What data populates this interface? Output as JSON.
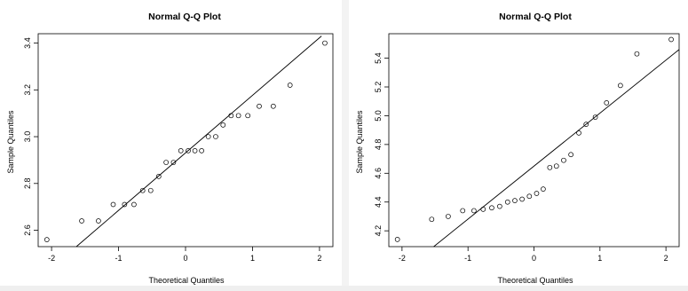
{
  "chart_data": [
    {
      "type": "scatter",
      "title": "Normal Q-Q Plot",
      "xlabel": "Theoretical Quantiles",
      "ylabel": "Sample Quantiles",
      "xlim": [
        -2.2,
        2.2
      ],
      "ylim": [
        2.53,
        3.44
      ],
      "x_ticks": [
        -2,
        -1,
        0,
        1,
        2
      ],
      "x_tick_labels": [
        "-2",
        "-1",
        "0",
        "1",
        "2"
      ],
      "y_ticks": [
        2.6,
        2.8,
        3.0,
        3.2,
        3.4
      ],
      "y_tick_labels": [
        "2.6",
        "2.8",
        "3.0",
        "3.2",
        "3.4"
      ],
      "grid": false,
      "reference_line": {
        "x": [
          -1.63,
          2.03
        ],
        "y": [
          2.53,
          3.43
        ]
      },
      "points": {
        "x": [
          -2.07,
          -1.55,
          -1.3,
          -1.08,
          -0.91,
          -0.77,
          -0.64,
          -0.52,
          -0.4,
          -0.29,
          -0.18,
          -0.07,
          0.04,
          0.14,
          0.24,
          0.34,
          0.45,
          0.56,
          0.68,
          0.79,
          0.93,
          1.1,
          1.31,
          1.56,
          2.08
        ],
        "y": [
          2.56,
          2.64,
          2.64,
          2.71,
          2.71,
          2.71,
          2.77,
          2.77,
          2.83,
          2.89,
          2.89,
          2.94,
          2.94,
          2.94,
          2.94,
          3.0,
          3.0,
          3.05,
          3.09,
          3.09,
          3.09,
          3.13,
          3.13,
          3.22,
          3.4
        ]
      }
    },
    {
      "type": "scatter",
      "title": "Normal Q-Q Plot",
      "xlabel": "Theoretical Quantiles",
      "ylabel": "Sample Quantiles",
      "xlim": [
        -2.2,
        2.2
      ],
      "ylim": [
        4.09,
        5.57
      ],
      "x_ticks": [
        -2,
        -1,
        0,
        1,
        2
      ],
      "x_tick_labels": [
        "-2",
        "-1",
        "0",
        "1",
        "2"
      ],
      "y_ticks": [
        4.2,
        4.4,
        4.6,
        4.8,
        5.0,
        5.2,
        5.4
      ],
      "y_tick_labels": [
        "4.2",
        "4.4",
        "4.6",
        "4.8",
        "5.0",
        "5.2",
        "5.4"
      ],
      "grid": false,
      "reference_line": {
        "x": [
          -1.52,
          2.2
        ],
        "y": [
          4.09,
          5.46
        ]
      },
      "points": {
        "x": [
          -2.07,
          -1.55,
          -1.3,
          -1.08,
          -0.91,
          -0.77,
          -0.64,
          -0.52,
          -0.4,
          -0.29,
          -0.18,
          -0.07,
          0.04,
          0.14,
          0.24,
          0.34,
          0.45,
          0.56,
          0.68,
          0.79,
          0.93,
          1.1,
          1.31,
          1.56,
          2.08
        ],
        "y": [
          4.14,
          4.28,
          4.3,
          4.34,
          4.34,
          4.35,
          4.36,
          4.37,
          4.4,
          4.41,
          4.42,
          4.44,
          4.46,
          4.49,
          4.64,
          4.65,
          4.69,
          4.73,
          4.88,
          4.94,
          4.99,
          5.09,
          5.21,
          5.43,
          5.53
        ]
      }
    }
  ]
}
